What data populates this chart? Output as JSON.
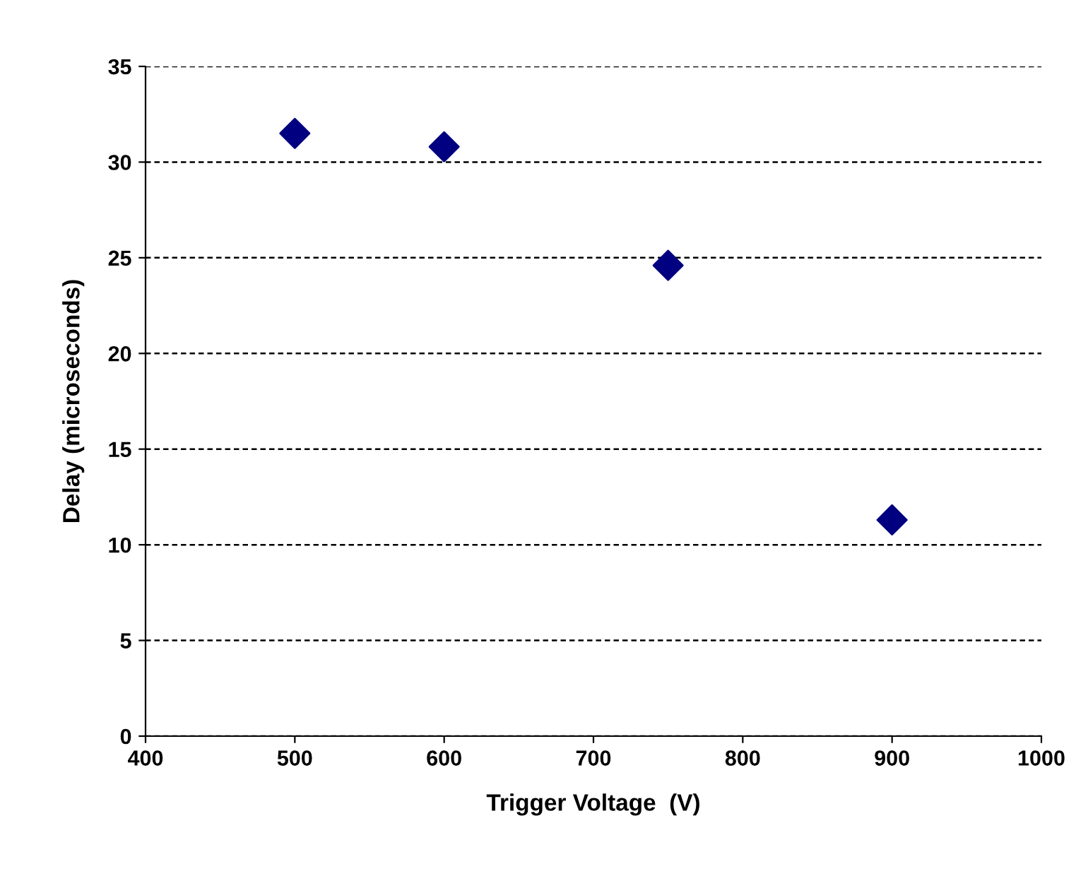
{
  "chart_data": {
    "type": "scatter",
    "xlabel": "Trigger Voltage  (V)",
    "ylabel": "Delay (microseconds)",
    "x": [
      500,
      600,
      750,
      900
    ],
    "series": [
      {
        "color": "#000080",
        "values": [
          31.5,
          30.8,
          24.6,
          11.3
        ]
      }
    ],
    "xlim": [
      400,
      1000
    ],
    "xticks": [
      400,
      500,
      600,
      700,
      800,
      900,
      1000
    ],
    "ylim": [
      0,
      35
    ],
    "yticks": [
      0,
      5,
      10,
      15,
      20,
      25,
      30,
      35
    ],
    "grid": "y",
    "marker": "diamond",
    "legend": false
  }
}
